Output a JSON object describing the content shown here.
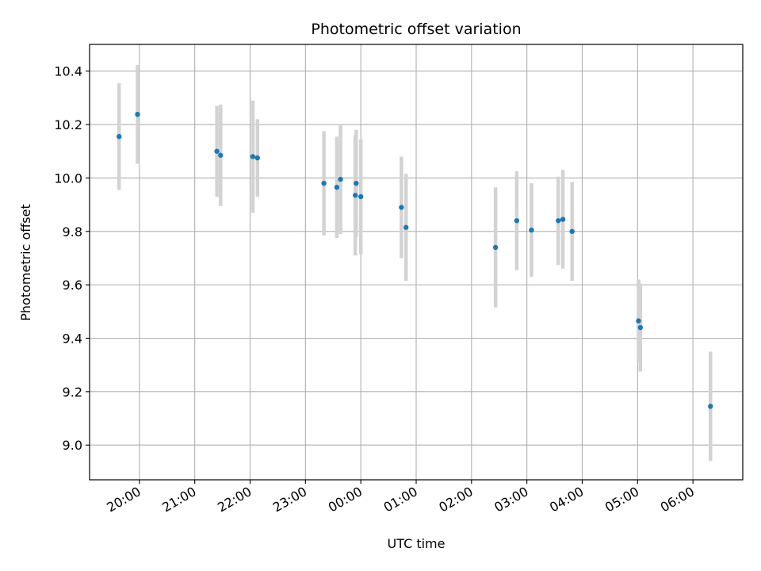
{
  "chart_data": {
    "type": "scatter",
    "title": "Photometric offset variation",
    "xlabel": "UTC time",
    "ylabel": "Photometric offset",
    "x_ticks": [
      "20:00",
      "21:00",
      "22:00",
      "23:00",
      "00:00",
      "01:00",
      "02:00",
      "03:00",
      "04:00",
      "05:00",
      "06:00"
    ],
    "y_ticks": [
      "9.0",
      "9.2",
      "9.4",
      "9.6",
      "9.8",
      "10.0",
      "10.2",
      "10.4"
    ],
    "ylim": [
      8.87,
      10.5
    ],
    "xlim": [
      "19:06",
      "06:54"
    ],
    "grid": true,
    "marker_color": "#1f77b4",
    "errorbar_color": "#d3d3d3",
    "points": [
      {
        "time": "19:38",
        "value": 10.155,
        "error": 0.2
      },
      {
        "time": "19:58",
        "value": 10.238,
        "error": 0.185
      },
      {
        "time": "21:24",
        "value": 10.1,
        "error": 0.17
      },
      {
        "time": "21:28",
        "value": 10.085,
        "error": 0.19
      },
      {
        "time": "22:03",
        "value": 10.08,
        "error": 0.21
      },
      {
        "time": "22:08",
        "value": 10.075,
        "error": 0.145
      },
      {
        "time": "23:20",
        "value": 9.98,
        "error": 0.195
      },
      {
        "time": "23:34",
        "value": 9.965,
        "error": 0.19
      },
      {
        "time": "23:38",
        "value": 9.995,
        "error": 0.205
      },
      {
        "time": "23:54",
        "value": 9.935,
        "error": 0.225
      },
      {
        "time": "23:55",
        "value": 9.98,
        "error": 0.2
      },
      {
        "time": "00:00",
        "value": 9.93,
        "error": 0.215
      },
      {
        "time": "00:44",
        "value": 9.89,
        "error": 0.19
      },
      {
        "time": "00:49",
        "value": 9.815,
        "error": 0.2
      },
      {
        "time": "02:26",
        "value": 9.74,
        "error": 0.225
      },
      {
        "time": "02:49",
        "value": 9.84,
        "error": 0.185
      },
      {
        "time": "03:05",
        "value": 9.805,
        "error": 0.175
      },
      {
        "time": "03:34",
        "value": 9.84,
        "error": 0.165
      },
      {
        "time": "03:39",
        "value": 9.845,
        "error": 0.185
      },
      {
        "time": "03:49",
        "value": 9.8,
        "error": 0.185
      },
      {
        "time": "05:01",
        "value": 9.465,
        "error": 0.155
      },
      {
        "time": "05:03",
        "value": 9.44,
        "error": 0.165
      },
      {
        "time": "06:19",
        "value": 9.145,
        "error": 0.205
      }
    ]
  }
}
